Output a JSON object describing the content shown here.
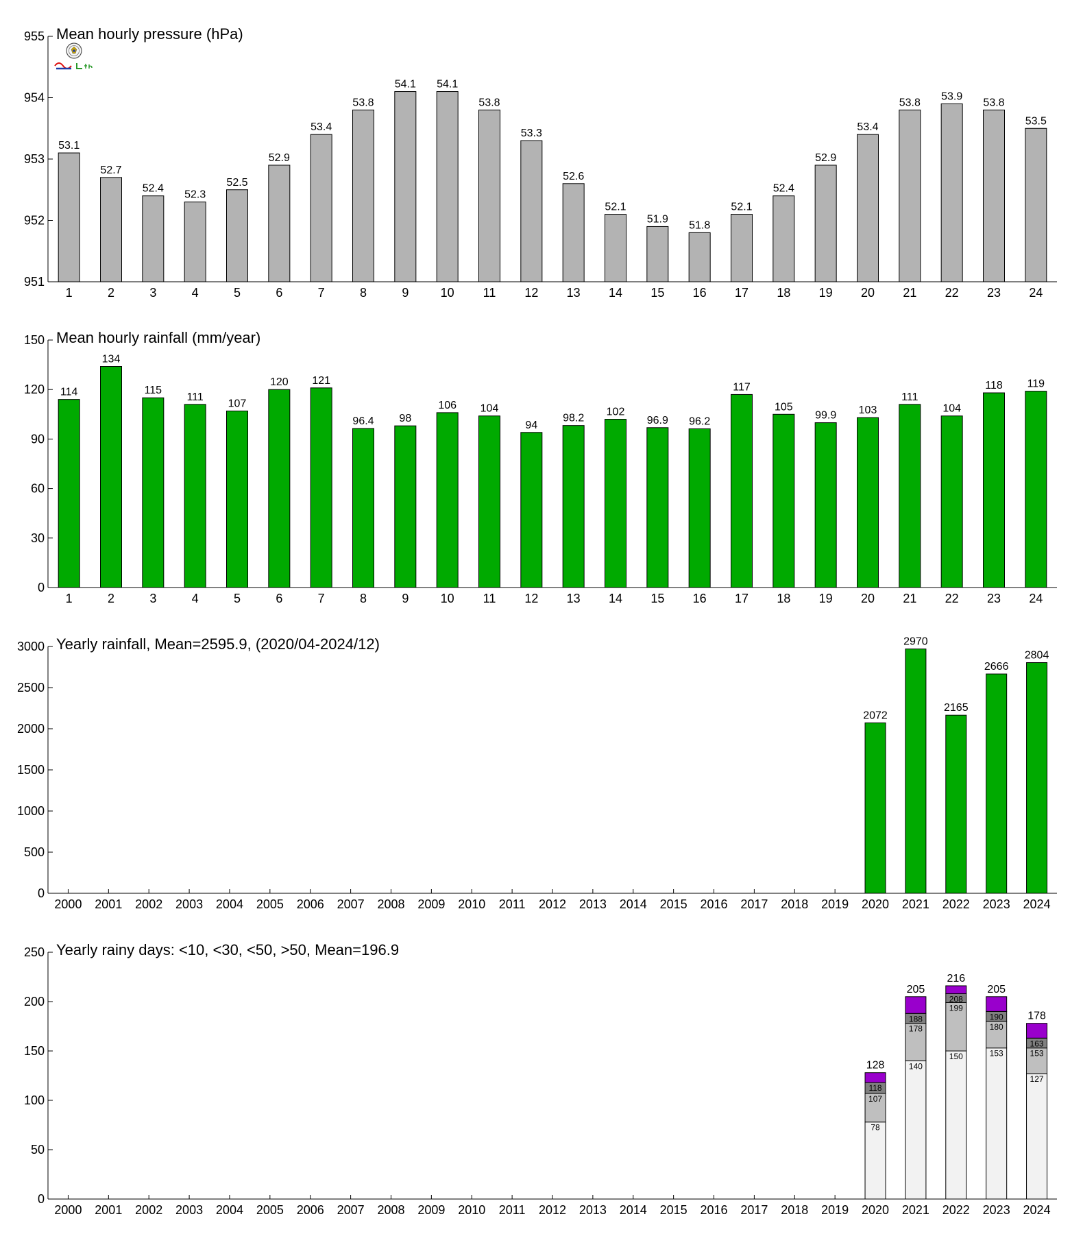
{
  "chart_data": [
    {
      "type": "bar",
      "title": "Mean hourly pressure (hPa)",
      "categories": [
        "1",
        "2",
        "3",
        "4",
        "5",
        "6",
        "7",
        "8",
        "9",
        "10",
        "11",
        "12",
        "13",
        "14",
        "15",
        "16",
        "17",
        "18",
        "19",
        "20",
        "21",
        "22",
        "23",
        "24"
      ],
      "values": [
        953.1,
        952.7,
        952.4,
        952.3,
        952.5,
        952.9,
        953.4,
        953.8,
        954.1,
        954.1,
        953.8,
        953.3,
        952.6,
        952.1,
        951.9,
        951.8,
        952.1,
        952.4,
        952.9,
        953.4,
        953.8,
        953.9,
        953.8,
        953.5
      ],
      "labels": [
        "53.1",
        "52.7",
        "52.4",
        "52.3",
        "52.5",
        "52.9",
        "53.4",
        "53.8",
        "54.1",
        "54.1",
        "53.8",
        "53.3",
        "52.6",
        "52.1",
        "51.9",
        "51.8",
        "52.1",
        "52.4",
        "52.9",
        "53.4",
        "53.8",
        "53.9",
        "53.8",
        "53.5"
      ],
      "ylim": [
        951,
        955
      ],
      "yticks": [
        951,
        952,
        953,
        954,
        955
      ],
      "color": "#b3b3b3",
      "grid": false
    },
    {
      "type": "bar",
      "title": "Mean hourly rainfall (mm/year)",
      "categories": [
        "1",
        "2",
        "3",
        "4",
        "5",
        "6",
        "7",
        "8",
        "9",
        "10",
        "11",
        "12",
        "13",
        "14",
        "15",
        "16",
        "17",
        "18",
        "19",
        "20",
        "21",
        "22",
        "23",
        "24"
      ],
      "values": [
        114,
        134,
        115,
        111,
        107,
        120,
        121,
        96.4,
        98,
        106,
        104,
        94,
        98.2,
        102,
        96.9,
        96.2,
        117,
        105,
        99.9,
        103,
        111,
        104,
        118,
        119
      ],
      "labels": [
        "114",
        "134",
        "115",
        "111",
        "107",
        "120",
        "121",
        "96.4",
        "98",
        "106",
        "104",
        "94",
        "98.2",
        "102",
        "96.9",
        "96.2",
        "117",
        "105",
        "99.9",
        "103",
        "111",
        "104",
        "118",
        "119"
      ],
      "ylim": [
        0,
        150
      ],
      "yticks": [
        0,
        30,
        60,
        90,
        120,
        150
      ],
      "color": "#00aa00",
      "grid": false
    },
    {
      "type": "bar",
      "title": "Yearly rainfall, Mean=2595.9, (2020/04-2024/12)",
      "categories": [
        "2000",
        "2001",
        "2002",
        "2003",
        "2004",
        "2005",
        "2006",
        "2007",
        "2008",
        "2009",
        "2010",
        "2011",
        "2012",
        "2013",
        "2014",
        "2015",
        "2016",
        "2017",
        "2018",
        "2019",
        "2020",
        "2021",
        "2022",
        "2023",
        "2024"
      ],
      "values": [
        null,
        null,
        null,
        null,
        null,
        null,
        null,
        null,
        null,
        null,
        null,
        null,
        null,
        null,
        null,
        null,
        null,
        null,
        null,
        null,
        2072,
        2970,
        2165,
        2666,
        2804
      ],
      "labels": [
        "",
        "",
        "",
        "",
        "",
        "",
        "",
        "",
        "",
        "",
        "",
        "",
        "",
        "",
        "",
        "",
        "",
        "",
        "",
        "",
        "2072",
        "2970",
        "2165",
        "2666",
        "2804"
      ],
      "ylim": [
        0,
        3000
      ],
      "yticks": [
        0,
        500,
        1000,
        1500,
        2000,
        2500,
        3000
      ],
      "color": "#00aa00",
      "grid": false
    },
    {
      "type": "bar",
      "stacked": true,
      "title": "Yearly rainy days: <10, <30, <50, >50, Mean=196.9",
      "categories": [
        "2000",
        "2001",
        "2002",
        "2003",
        "2004",
        "2005",
        "2006",
        "2007",
        "2008",
        "2009",
        "2010",
        "2011",
        "2012",
        "2013",
        "2014",
        "2015",
        "2016",
        "2017",
        "2018",
        "2019",
        "2020",
        "2021",
        "2022",
        "2023",
        "2024"
      ],
      "cumulative": [
        {
          "color": "#f2f2f2",
          "values": [
            null,
            null,
            null,
            null,
            null,
            null,
            null,
            null,
            null,
            null,
            null,
            null,
            null,
            null,
            null,
            null,
            null,
            null,
            null,
            null,
            78,
            140,
            150,
            153,
            127
          ]
        },
        {
          "color": "#bfbfbf",
          "values": [
            null,
            null,
            null,
            null,
            null,
            null,
            null,
            null,
            null,
            null,
            null,
            null,
            null,
            null,
            null,
            null,
            null,
            null,
            null,
            null,
            107,
            178,
            199,
            180,
            153
          ]
        },
        {
          "color": "#808080",
          "values": [
            null,
            null,
            null,
            null,
            null,
            null,
            null,
            null,
            null,
            null,
            null,
            null,
            null,
            null,
            null,
            null,
            null,
            null,
            null,
            null,
            118,
            188,
            208,
            190,
            163
          ]
        },
        {
          "color": "#9900cc",
          "values": [
            null,
            null,
            null,
            null,
            null,
            null,
            null,
            null,
            null,
            null,
            null,
            null,
            null,
            null,
            null,
            null,
            null,
            null,
            null,
            null,
            128,
            205,
            216,
            205,
            178
          ]
        }
      ],
      "ylim": [
        0,
        250
      ],
      "yticks": [
        0,
        50,
        100,
        150,
        200,
        250
      ],
      "grid": false
    }
  ]
}
